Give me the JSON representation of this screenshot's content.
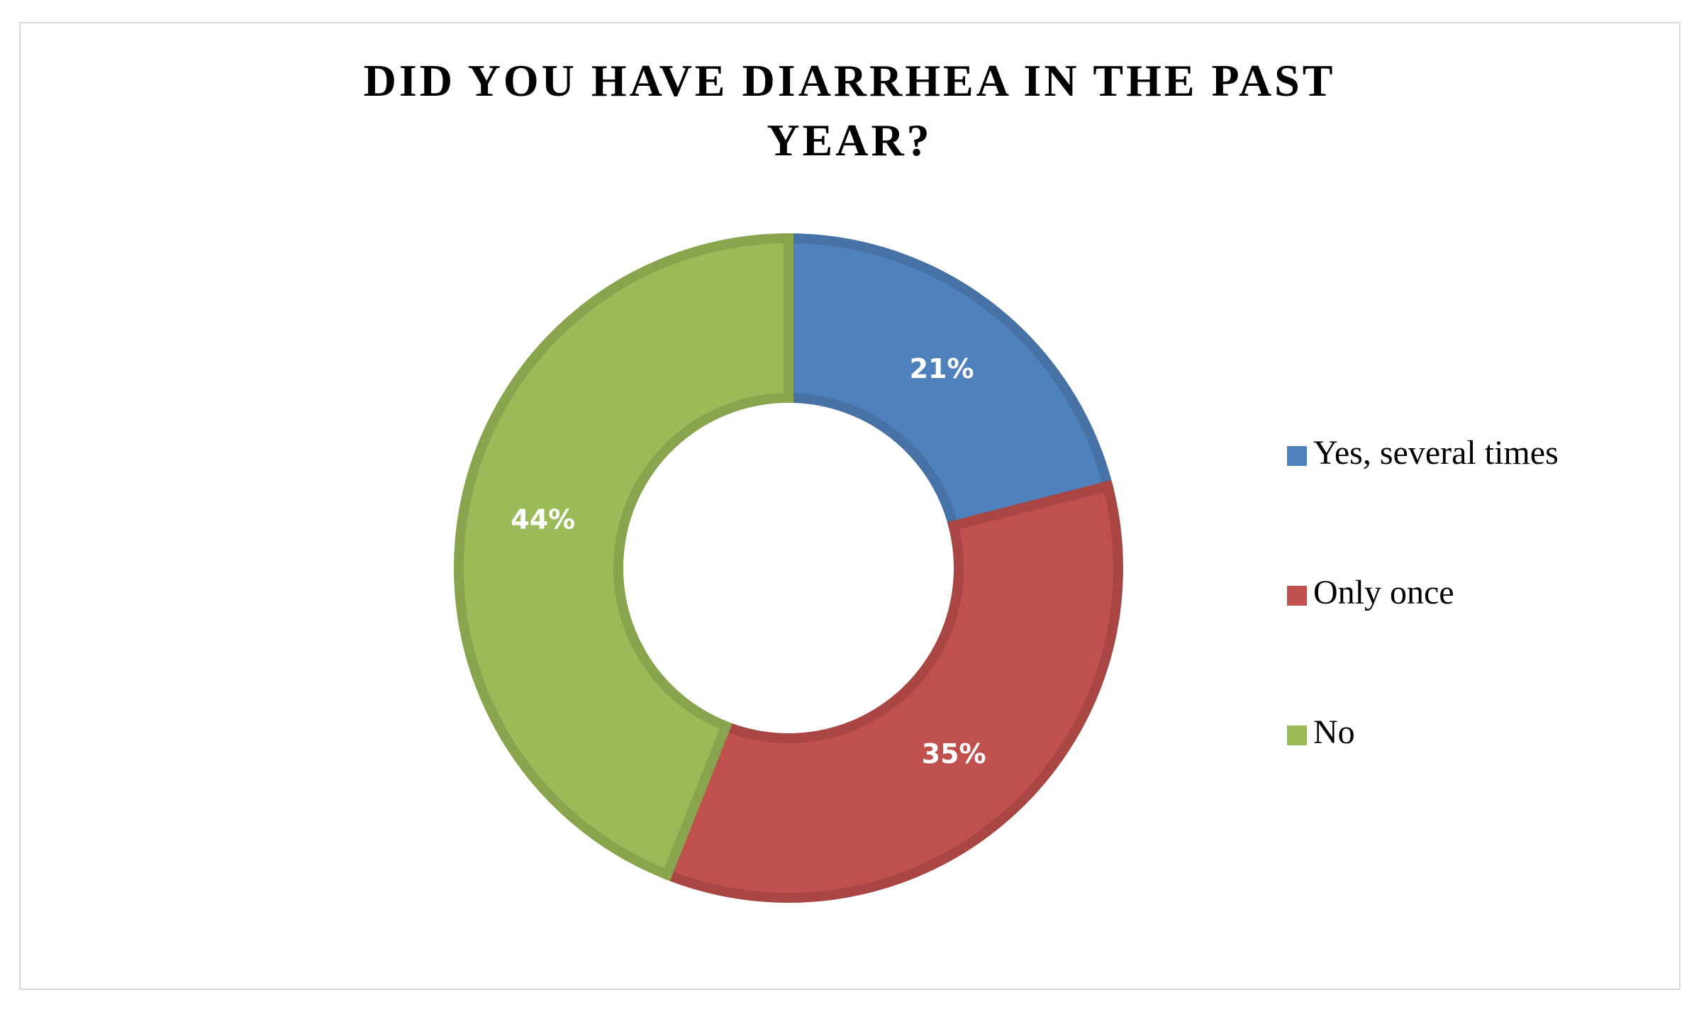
{
  "chart_data": {
    "type": "donut",
    "title": "DID YOU HAVE DIARRHEA IN THE PAST YEAR?",
    "categories": [
      "Yes, several times",
      "Only once",
      "No"
    ],
    "values": [
      21,
      35,
      44
    ],
    "value_labels": [
      "21%",
      "35%",
      "44%"
    ],
    "colors": [
      "#4f81bd",
      "#c0504d",
      "#9bbb59"
    ],
    "legend": "right"
  }
}
